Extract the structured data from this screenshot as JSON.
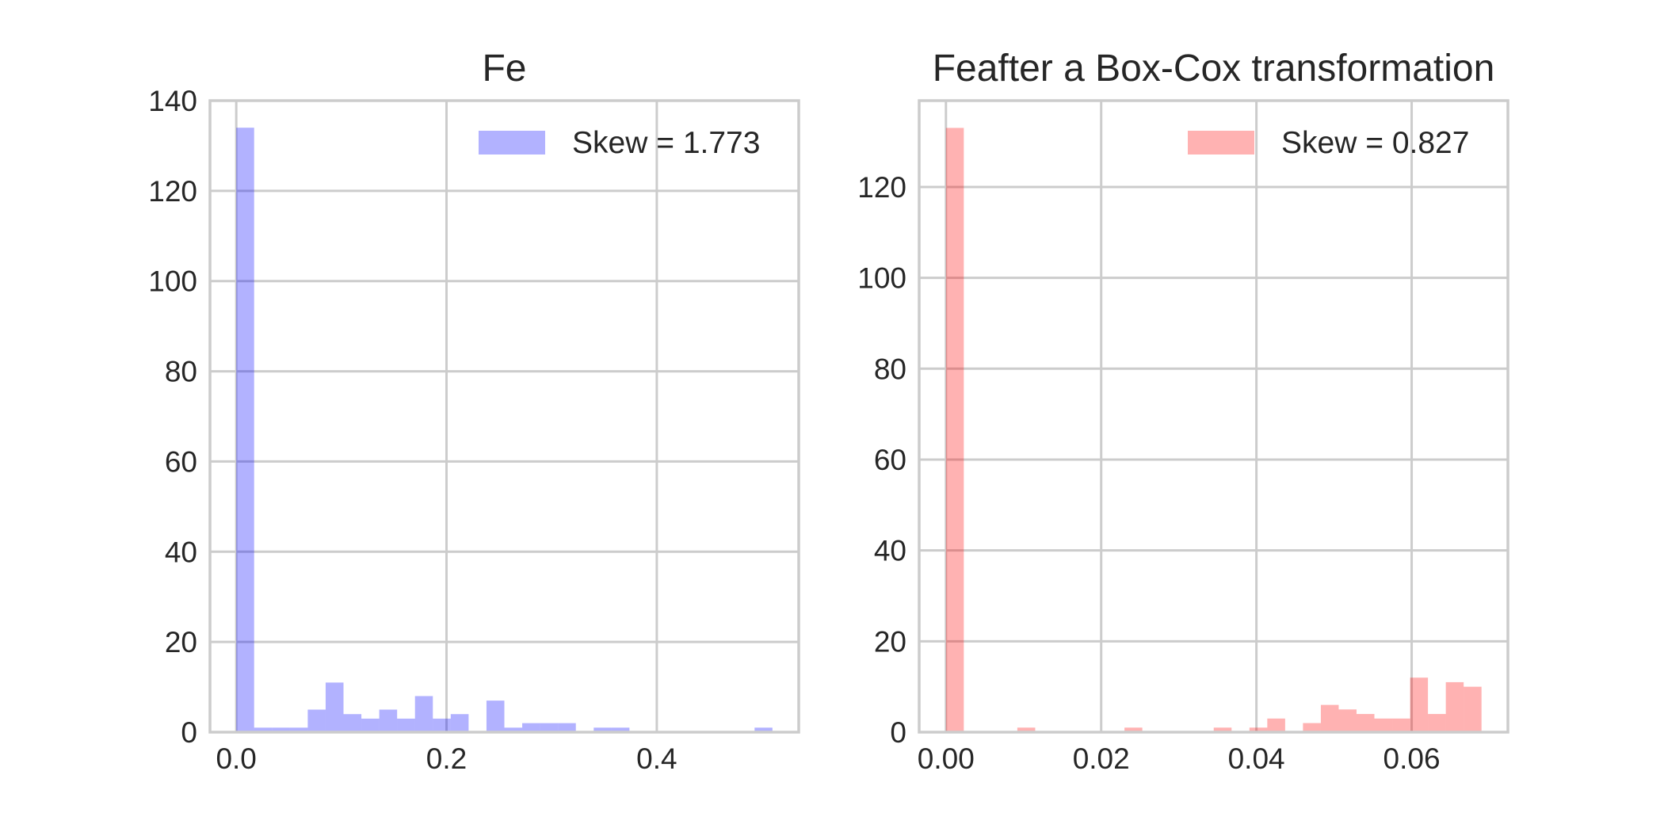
{
  "chart_data": [
    {
      "type": "bar",
      "title": "Fe",
      "xlabel": "",
      "ylabel": "",
      "xlim": [
        -0.025,
        0.535
      ],
      "ylim": [
        0,
        140
      ],
      "xticks": [
        0.0,
        0.2,
        0.4
      ],
      "xtick_labels": [
        "0.0",
        "0.2",
        "0.4"
      ],
      "yticks": [
        0,
        20,
        40,
        60,
        80,
        100,
        120,
        140
      ],
      "ytick_labels": [
        "0",
        "20",
        "40",
        "60",
        "80",
        "100",
        "120",
        "140"
      ],
      "grid": true,
      "legend_position": "top-right",
      "color": "#0000ff",
      "opacity": 0.3,
      "series": [
        {
          "name": "Skew = 1.773",
          "bin_edges": [
            0,
            0.017,
            0.034,
            0.051,
            0.068,
            0.085,
            0.102,
            0.119,
            0.136,
            0.153,
            0.17,
            0.187,
            0.204,
            0.221,
            0.238,
            0.255,
            0.272,
            0.289,
            0.306,
            0.323,
            0.34,
            0.357,
            0.374,
            0.391,
            0.408,
            0.425,
            0.442,
            0.459,
            0.476,
            0.493,
            0.51
          ],
          "counts": [
            134,
            1,
            1,
            1,
            5,
            11,
            4,
            3,
            5,
            3,
            8,
            3,
            4,
            0,
            7,
            1,
            2,
            2,
            2,
            0,
            1,
            1,
            0,
            0,
            0,
            0,
            0,
            0,
            0,
            1
          ]
        }
      ]
    },
    {
      "type": "bar",
      "title": "Feafter a Box-Cox transformation",
      "xlabel": "",
      "ylabel": "",
      "xlim": [
        -0.00345,
        0.0724
      ],
      "ylim": [
        0,
        139
      ],
      "xticks": [
        0.0,
        0.02,
        0.04,
        0.06
      ],
      "xtick_labels": [
        "0.00",
        "0.02",
        "0.04",
        "0.06"
      ],
      "yticks": [
        0,
        20,
        40,
        60,
        80,
        100,
        120
      ],
      "ytick_labels": [
        "0",
        "20",
        "40",
        "60",
        "80",
        "100",
        "120"
      ],
      "grid": true,
      "legend_position": "top-right",
      "color": "#ff0000",
      "opacity": 0.3,
      "series": [
        {
          "name": "Skew = 0.827",
          "bin_edges": [
            0,
            0.0023,
            0.0046,
            0.0069,
            0.0092,
            0.0115,
            0.0138,
            0.0161,
            0.0184,
            0.0207,
            0.023,
            0.0253,
            0.0276,
            0.0299,
            0.0322,
            0.0345,
            0.0368,
            0.0391,
            0.0414,
            0.0437,
            0.046,
            0.0483,
            0.0506,
            0.0529,
            0.0552,
            0.0575,
            0.0598,
            0.0621,
            0.0644,
            0.0667,
            0.069
          ],
          "counts": [
            133,
            0,
            0,
            0,
            1,
            0,
            0,
            0,
            0,
            0,
            1,
            0,
            0,
            0,
            0,
            1,
            0,
            1,
            3,
            0,
            2,
            6,
            5,
            4,
            3,
            3,
            12,
            4,
            11,
            10
          ]
        }
      ]
    }
  ]
}
